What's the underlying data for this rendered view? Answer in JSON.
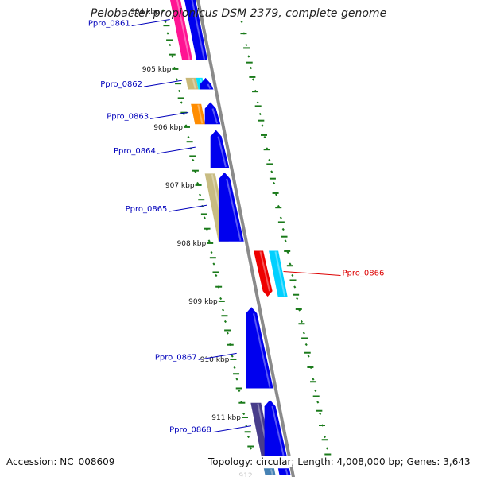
{
  "title": "Pelobacter propionicus DSM 2379, complete genome",
  "footer": {
    "accession": "Accession: NC_008609",
    "summary": "Topology: circular; Length: 4,008,000 bp; Genes: 3,643"
  },
  "colors": {
    "backbone": "#8a8a8a",
    "ticks": "#1a7a1a",
    "label_plus": "#0000bb",
    "label_minus": "#dd0000"
  },
  "scale": {
    "start_kbp": 903.7,
    "end_kbp": 912.0
  },
  "scale_labels": [
    {
      "kbp": 904,
      "label": "904 kbp"
    },
    {
      "kbp": 905,
      "label": "905 kbp"
    },
    {
      "kbp": 906,
      "label": "906 kbp"
    },
    {
      "kbp": 907,
      "label": "907 kbp"
    },
    {
      "kbp": 908,
      "label": "908 kbp"
    },
    {
      "kbp": 909,
      "label": "909 kbp"
    },
    {
      "kbp": 910,
      "label": "910 kbp"
    },
    {
      "kbp": 911,
      "label": "911 kbp"
    },
    {
      "kbp": 912,
      "label": "912"
    }
  ],
  "features": [
    {
      "strand": "plus",
      "track": "cog",
      "start_kbp": 903.7,
      "end_kbp": 903.76,
      "color": "#0000ee",
      "arrow": false
    },
    {
      "strand": "plus",
      "track": "cog",
      "start_kbp": 903.75,
      "end_kbp": 904.85,
      "color": "#ff1493",
      "arrow": false
    },
    {
      "strand": "plus",
      "track": "gene",
      "start_kbp": 903.75,
      "end_kbp": 904.85,
      "color": "#0000ee",
      "arrow": false
    },
    {
      "strand": "plus",
      "track": "cog",
      "start_kbp": 905.15,
      "end_kbp": 905.35,
      "color": "#c8b878",
      "arrow": false
    },
    {
      "strand": "plus",
      "track": "cog2",
      "start_kbp": 905.15,
      "end_kbp": 905.35,
      "color": "#00e5ff",
      "arrow": false
    },
    {
      "strand": "plus",
      "track": "gene",
      "start_kbp": 905.15,
      "end_kbp": 905.35,
      "color": "#0000ee",
      "arrow": true
    },
    {
      "strand": "plus",
      "track": "cog",
      "start_kbp": 905.6,
      "end_kbp": 905.95,
      "color": "#ff8c00",
      "arrow": false
    },
    {
      "strand": "plus",
      "track": "gene",
      "start_kbp": 905.57,
      "end_kbp": 905.95,
      "color": "#0000ee",
      "arrow": true
    },
    {
      "strand": "plus",
      "track": "gene",
      "start_kbp": 906.05,
      "end_kbp": 906.7,
      "color": "#0000ee",
      "arrow": true
    },
    {
      "strand": "plus",
      "track": "cog",
      "start_kbp": 906.8,
      "end_kbp": 907.97,
      "color": "#c8bc82",
      "arrow": false
    },
    {
      "strand": "plus",
      "track": "gene",
      "start_kbp": 906.78,
      "end_kbp": 907.97,
      "color": "#0000ee",
      "arrow": true
    },
    {
      "strand": "minus",
      "track": "cog",
      "start_kbp": 908.13,
      "end_kbp": 908.92,
      "color": "#00d0ff",
      "arrow": false
    },
    {
      "strand": "minus",
      "track": "gene",
      "start_kbp": 908.13,
      "end_kbp": 908.92,
      "color": "#ee0000",
      "arrow": true
    },
    {
      "strand": "plus",
      "track": "gene",
      "start_kbp": 909.1,
      "end_kbp": 910.5,
      "color": "#0000ee",
      "arrow": true
    },
    {
      "strand": "plus",
      "track": "cog",
      "start_kbp": 910.75,
      "end_kbp": 911.67,
      "color": "#483d8b",
      "arrow": false
    },
    {
      "strand": "plus",
      "track": "gene",
      "start_kbp": 910.7,
      "end_kbp": 911.67,
      "color": "#0000ee",
      "arrow": true
    },
    {
      "strand": "plus",
      "track": "cog",
      "start_kbp": 911.88,
      "end_kbp": 912.0,
      "color": "#4682b4",
      "arrow": false
    },
    {
      "strand": "plus",
      "track": "gene",
      "start_kbp": 911.88,
      "end_kbp": 912.0,
      "color": "#0000ee",
      "arrow": false
    }
  ],
  "gene_labels": [
    {
      "name": "Ppro_0861",
      "strand": "plus",
      "kbp": 904.2
    },
    {
      "name": "Ppro_0862",
      "strand": "plus",
      "kbp": 905.25
    },
    {
      "name": "Ppro_0863",
      "strand": "plus",
      "kbp": 905.8
    },
    {
      "name": "Ppro_0864",
      "strand": "plus",
      "kbp": 906.4
    },
    {
      "name": "Ppro_0865",
      "strand": "plus",
      "kbp": 907.4
    },
    {
      "name": "Ppro_0866",
      "strand": "minus",
      "kbp": 908.5
    },
    {
      "name": "Ppro_0867",
      "strand": "plus",
      "kbp": 909.95
    },
    {
      "name": "Ppro_0868",
      "strand": "plus",
      "kbp": 911.2
    }
  ]
}
